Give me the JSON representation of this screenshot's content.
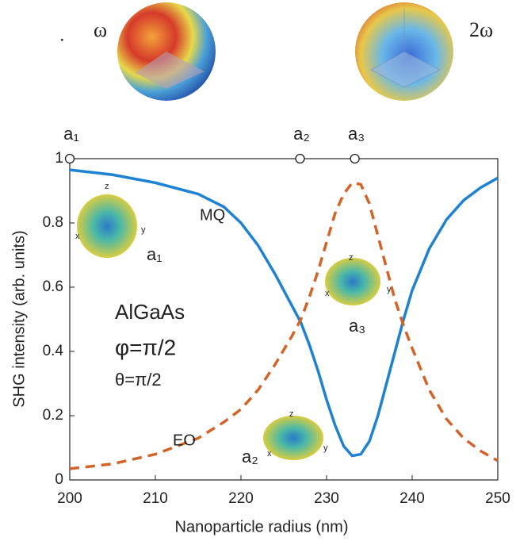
{
  "chart_data": {
    "type": "line",
    "xlabel": "Nanoparticle radius (nm)",
    "ylabel": "SHG intensity (arb. units)",
    "xlim": [
      200,
      250
    ],
    "xticks": [
      200,
      210,
      220,
      230,
      240,
      250
    ],
    "ylim": [
      0,
      1
    ],
    "yticks": [
      0,
      0.2,
      0.4,
      0.6,
      0.8,
      1
    ],
    "x": [
      200,
      205,
      210,
      215,
      218,
      220,
      222,
      224,
      226,
      227,
      228,
      229,
      230,
      231,
      232,
      233,
      234,
      235,
      236,
      237,
      238,
      239,
      240,
      242,
      244,
      246,
      248,
      250
    ],
    "series": [
      {
        "name": "MQ",
        "color": "#1f82d0",
        "dash": false,
        "values": [
          0.965,
          0.95,
          0.925,
          0.89,
          0.85,
          0.8,
          0.73,
          0.64,
          0.54,
          0.49,
          0.42,
          0.34,
          0.25,
          0.17,
          0.105,
          0.075,
          0.08,
          0.12,
          0.2,
          0.3,
          0.4,
          0.5,
          0.59,
          0.72,
          0.81,
          0.87,
          0.91,
          0.94
        ]
      },
      {
        "name": "EO",
        "color": "#d2642a",
        "dash": true,
        "values": [
          0.035,
          0.05,
          0.08,
          0.13,
          0.18,
          0.22,
          0.28,
          0.36,
          0.45,
          0.5,
          0.57,
          0.65,
          0.74,
          0.83,
          0.89,
          0.925,
          0.92,
          0.86,
          0.76,
          0.66,
          0.56,
          0.48,
          0.41,
          0.28,
          0.19,
          0.13,
          0.09,
          0.06
        ]
      }
    ],
    "top_points": {
      "x": [
        200,
        226.9,
        233.3
      ],
      "labels": [
        "a₁",
        "a₂",
        "a₃"
      ]
    },
    "inset_labels": [
      "a₁",
      "a₂",
      "a₃"
    ],
    "inset_axis_labels": [
      "x",
      "y",
      "z"
    ],
    "material": "AlGaAs",
    "phi": "φ=π/2",
    "theta": "θ=π/2",
    "sphere_labels": [
      "ω",
      "2ω"
    ],
    "dot": "."
  }
}
